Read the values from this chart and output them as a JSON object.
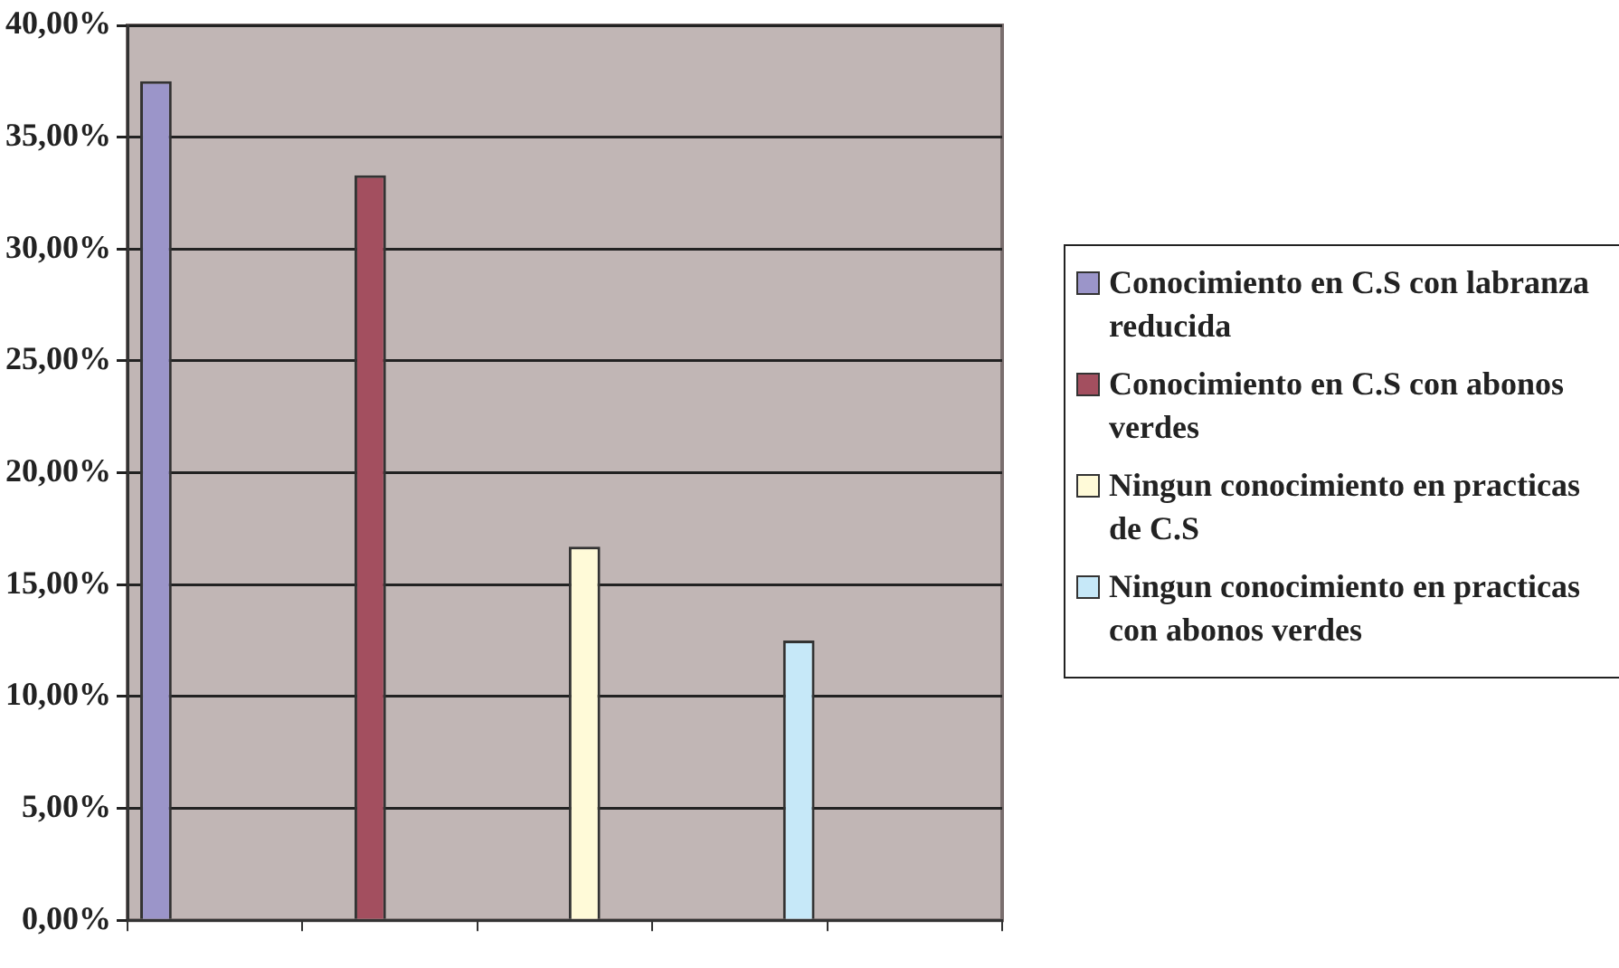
{
  "chart_data": {
    "type": "bar",
    "categories": [
      null,
      null,
      null,
      null,
      null
    ],
    "series": [
      {
        "name": "Conocimiento en C.S con labranza reducida",
        "color": "#9b95c9",
        "values": [
          37.5,
          null,
          null,
          null,
          null
        ]
      },
      {
        "name": "Conocimiento en C.S con abonos verdes",
        "color": "#a34f5f",
        "values": [
          null,
          33.3,
          null,
          null,
          null
        ]
      },
      {
        "name": "Ningun conocimiento en practicas de C.S",
        "color": "#fffad8",
        "values": [
          null,
          null,
          16.7,
          null,
          null
        ]
      },
      {
        "name": "Ningun conocimiento en practicas con abonos verdes",
        "color": "#c6e8f8",
        "values": [
          null,
          null,
          null,
          12.5,
          null
        ]
      }
    ],
    "ylim": [
      0,
      40
    ],
    "yticks": [
      {
        "value": 0,
        "label": "0,00%"
      },
      {
        "value": 5,
        "label": "5,00%"
      },
      {
        "value": 10,
        "label": "10,00%"
      },
      {
        "value": 15,
        "label": "15,00%"
      },
      {
        "value": 20,
        "label": "20,00%"
      },
      {
        "value": 25,
        "label": "25,00%"
      },
      {
        "value": 30,
        "label": "30,00%"
      },
      {
        "value": 35,
        "label": "35,00%"
      },
      {
        "value": 40,
        "label": "40,00%"
      }
    ],
    "grid": "y",
    "legend": "right"
  }
}
